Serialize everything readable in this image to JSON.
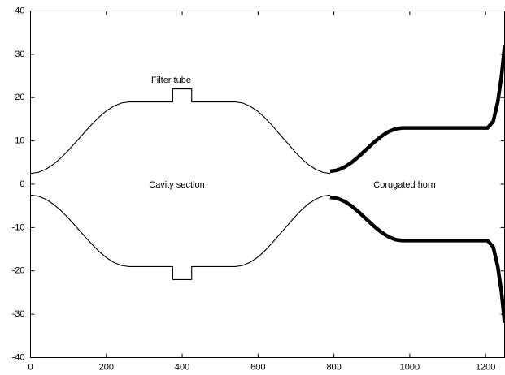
{
  "chart_data": {
    "type": "line",
    "xlim": [
      0,
      1250
    ],
    "xticks": [
      0,
      200,
      400,
      600,
      800,
      1000,
      1200
    ],
    "ylim": [
      -40,
      40
    ],
    "yticks": [
      -40,
      -30,
      -20,
      -10,
      0,
      10,
      20,
      30,
      40
    ],
    "annotations": [
      "Filter tube",
      "Cavity section",
      "Corugated horn"
    ],
    "series": [
      {
        "color": "#000000",
        "x": [
          0,
          20,
          40,
          60,
          80,
          100,
          120,
          140,
          160,
          180,
          200,
          220,
          240,
          260,
          375,
          375,
          425,
          425,
          540,
          559,
          578,
          598,
          617,
          636,
          655,
          675,
          694,
          713,
          732,
          752,
          771,
          790
        ],
        "values": [
          2.5,
          2.74,
          3.44,
          4.57,
          6.06,
          7.82,
          9.76,
          11.74,
          13.68,
          15.44,
          16.93,
          18.06,
          18.76,
          19,
          19,
          22,
          22,
          19,
          19,
          18.76,
          18.06,
          16.93,
          15.44,
          13.68,
          11.74,
          9.76,
          7.82,
          6.06,
          4.57,
          3.44,
          2.74,
          2.5
        ]
      },
      {
        "color": "#000000",
        "x": [
          0,
          20,
          40,
          60,
          80,
          100,
          120,
          140,
          160,
          180,
          200,
          220,
          240,
          260,
          375,
          375,
          425,
          425,
          540,
          559,
          578,
          598,
          617,
          636,
          655,
          675,
          694,
          713,
          732,
          752,
          771,
          790
        ],
        "values": [
          -2.5,
          -2.74,
          -3.44,
          -4.57,
          -6.06,
          -7.82,
          -9.76,
          -11.74,
          -13.68,
          -15.44,
          -16.93,
          -18.06,
          -18.76,
          -19,
          -19,
          -22,
          -22,
          -19,
          -19,
          -18.76,
          -18.06,
          -16.93,
          -15.44,
          -13.68,
          -11.74,
          -9.76,
          -7.82,
          -6.06,
          -4.57,
          -3.44,
          -2.74,
          -2.5
        ]
      },
      {
        "color": "#000000",
        "x": [
          790,
          809,
          828,
          847,
          866,
          885,
          904,
          923,
          942,
          961,
          980,
          1205,
          1220,
          1232,
          1242,
          1250
        ],
        "values": [
          3,
          3.24,
          3.96,
          5.06,
          6.45,
          8,
          9.55,
          10.94,
          12.04,
          12.76,
          13,
          13,
          14.5,
          19,
          25,
          32
        ]
      },
      {
        "color": "#000000",
        "x": [
          790,
          809,
          828,
          847,
          866,
          885,
          904,
          923,
          942,
          961,
          980,
          1205,
          1220,
          1232,
          1242,
          1250
        ],
        "values": [
          -3,
          -3.24,
          -3.96,
          -5.06,
          -6.45,
          -8,
          -9.55,
          -10.94,
          -12.04,
          -12.76,
          -13,
          -13,
          -14.5,
          -19,
          -25,
          -32
        ]
      }
    ]
  }
}
